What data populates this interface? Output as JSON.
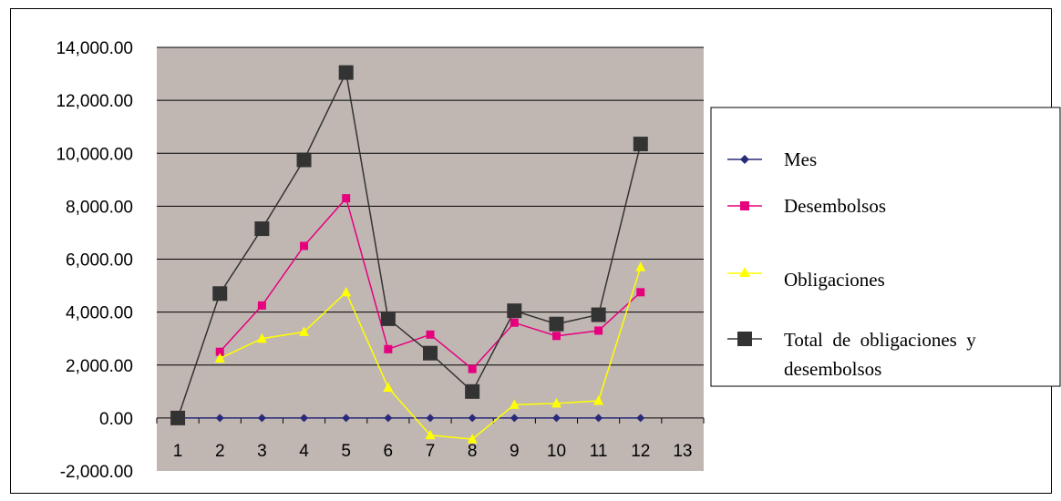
{
  "chart_data": {
    "type": "line",
    "title": "",
    "xlabel": "",
    "ylabel": "",
    "x_ticks": [
      "1",
      "2",
      "3",
      "4",
      "5",
      "6",
      "7",
      "8",
      "9",
      "10",
      "11",
      "12",
      "13"
    ],
    "x_range": [
      0.5,
      13.5
    ],
    "ylim": [
      -2000,
      14000
    ],
    "y_ticks": [
      14000,
      12000,
      10000,
      8000,
      6000,
      4000,
      2000,
      0,
      -2000
    ],
    "y_tick_labels": [
      "14,000.00",
      "12,000.00",
      "10,000.00",
      "8,000.00",
      "6,000.00",
      "4,000.00",
      "2,000.00",
      "0.00",
      "-2,000.00"
    ],
    "grid": true,
    "plot_background": "#c0b7b3",
    "legend_position": "right",
    "series": [
      {
        "name": "Mes",
        "color": "#2a2a7a",
        "marker": "diamond",
        "x": [
          1,
          2,
          3,
          4,
          5,
          6,
          7,
          8,
          9,
          10,
          11,
          12
        ],
        "values": [
          0,
          0,
          0,
          0,
          0,
          0,
          0,
          0,
          0,
          0,
          0,
          0
        ]
      },
      {
        "name": "Desembolsos",
        "color": "#e6007e",
        "marker": "square",
        "x": [
          2,
          3,
          4,
          5,
          6,
          7,
          8,
          9,
          10,
          11,
          12
        ],
        "values": [
          2500,
          4250,
          6500,
          8300,
          2600,
          3150,
          1850,
          3600,
          3100,
          3300,
          4750
        ]
      },
      {
        "name": "Obligaciones",
        "color": "#ffff00",
        "marker": "triangle",
        "x": [
          2,
          3,
          4,
          5,
          6,
          7,
          8,
          9,
          10,
          11,
          12
        ],
        "values": [
          2250,
          3000,
          3250,
          4750,
          1150,
          -650,
          -800,
          500,
          550,
          650,
          5700
        ]
      },
      {
        "name": "Total de obligaciones y desembolsos",
        "name_lines": [
          "Total  de  obligaciones  y",
          "desembolsos"
        ],
        "color": "#333333",
        "marker": "big-square",
        "x": [
          1,
          2,
          3,
          4,
          5,
          6,
          7,
          8,
          9,
          10,
          11,
          12
        ],
        "values": [
          0,
          4700,
          7150,
          9750,
          13050,
          3750,
          2450,
          1000,
          4050,
          3550,
          3900,
          10350
        ]
      }
    ]
  }
}
